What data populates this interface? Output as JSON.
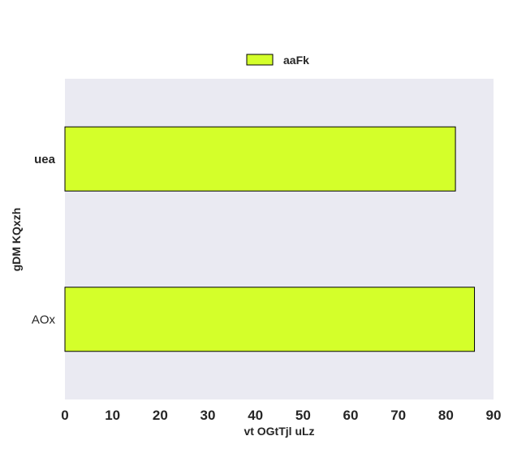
{
  "chart_data": {
    "type": "bar",
    "orientation": "horizontal",
    "categories": [
      "uea",
      "AOx"
    ],
    "series": [
      {
        "name": "aaFk",
        "values": [
          82,
          86
        ],
        "color": "#d4ff2a"
      }
    ],
    "xlabel": "vt OGtTjl uLz",
    "ylabel": "gDM KQxzh",
    "xlim": [
      0,
      90
    ],
    "xticks": [
      "0",
      "10",
      "20",
      "30",
      "40",
      "50",
      "60",
      "70",
      "80",
      "90"
    ],
    "grid": false,
    "legend_position": "top-center",
    "plot_background": "#eaeaf2"
  }
}
